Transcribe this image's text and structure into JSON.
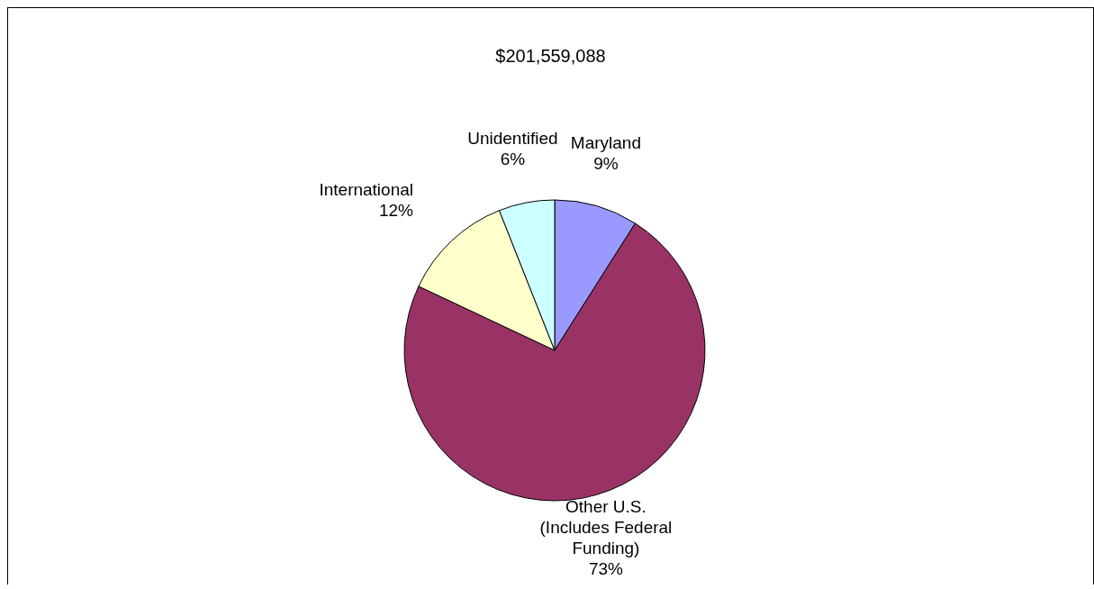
{
  "chart_data": {
    "type": "pie",
    "title": "$201,559,088",
    "categories": [
      "Maryland",
      "Other U.S. (Includes Federal Funding)",
      "International",
      "Unidentified"
    ],
    "values": [
      9,
      73,
      12,
      6
    ],
    "colors": [
      "#9999ff",
      "#993366",
      "#ffffcc",
      "#ccffff"
    ],
    "value_labels": [
      "9%",
      "73%",
      "12%",
      "6%"
    ],
    "legend": false
  }
}
